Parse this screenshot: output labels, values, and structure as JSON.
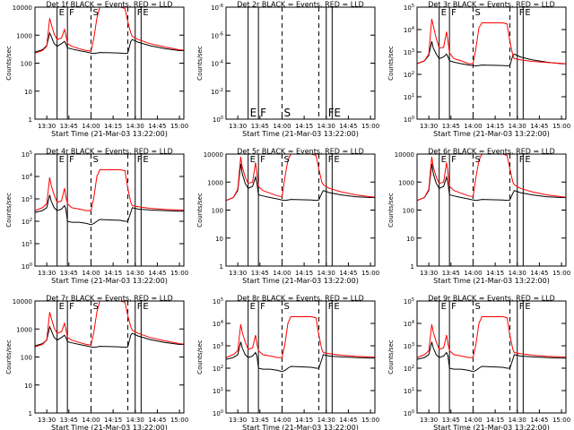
{
  "chart_data": {
    "type": "line",
    "shared": {
      "xlabel": "Start Time (21-Mar-03 13:22:00)",
      "ylabel": "Counts/sec",
      "x_ticks": [
        "13:30",
        "13:45",
        "14:00",
        "14:15",
        "14:30",
        "14:45",
        "15:00"
      ],
      "x_range": [
        "13:22",
        "15:03"
      ],
      "y_scale": "log",
      "event_markers": [
        {
          "label": "E",
          "time": "13:37",
          "style": "solid"
        },
        {
          "label": "F",
          "time": "13:44",
          "style": "solid"
        },
        {
          "label": "S",
          "time": "14:00",
          "style": "dashed"
        },
        {
          "label": "",
          "time": "14:25",
          "style": "dashed"
        },
        {
          "label": "F",
          "time": "14:30",
          "style": "solid"
        },
        {
          "label": "E",
          "time": "14:34",
          "style": "solid"
        }
      ],
      "series_colors": {
        "events": "#000000",
        "lld": "#ff0000"
      },
      "time_points": [
        "13:22",
        "13:27",
        "13:30",
        "13:32",
        "13:33",
        "13:35",
        "13:37",
        "13:40",
        "13:42",
        "13:43",
        "13:44",
        "13:47",
        "13:52",
        "13:57",
        "14:00",
        "14:02",
        "14:04",
        "14:06",
        "14:20",
        "14:23",
        "14:25",
        "14:27",
        "14:28",
        "14:32",
        "14:40",
        "14:50",
        "15:00",
        "15:03"
      ]
    },
    "panels": [
      {
        "title": "Det 1f BLACK = Events, RED = LLD",
        "y_ticks": [
          "1",
          "10",
          "100",
          "1000",
          "10000"
        ],
        "ylim": [
          1,
          10000
        ],
        "events": [
          250,
          300,
          420,
          1200,
          900,
          500,
          400,
          500,
          600,
          500,
          350,
          320,
          280,
          250,
          230,
          220,
          230,
          240,
          230,
          220,
          230,
          600,
          700,
          560,
          420,
          330,
          280,
          280
        ],
        "lld": [
          230,
          280,
          400,
          4000,
          2500,
          1100,
          700,
          800,
          1600,
          1000,
          500,
          400,
          330,
          280,
          270,
          800,
          4000,
          10000,
          10000,
          9000,
          3000,
          1200,
          900,
          700,
          500,
          380,
          300,
          290
        ]
      },
      {
        "title": "Det 2r BLACK = Events, RED = LLD",
        "y_ticks": [
          "10^0",
          "10^-2",
          "10^-4",
          "10^-6",
          "10^-8"
        ],
        "ylim": [
          1,
          1e-08
        ],
        "events": [],
        "lld": []
      },
      {
        "title": "Det 3r BLACK = Events, RED = LLD",
        "y_ticks": [
          "10^0",
          "10^1",
          "10^2",
          "10^3",
          "10^4",
          "10^5"
        ],
        "ylim": [
          1,
          100000
        ],
        "events": [
          300,
          400,
          700,
          3000,
          1500,
          800,
          500,
          600,
          800,
          600,
          400,
          350,
          300,
          260,
          250,
          240,
          250,
          260,
          250,
          240,
          250,
          700,
          800,
          600,
          450,
          350,
          300,
          300
        ],
        "lld": [
          300,
          400,
          800,
          30000,
          15000,
          4000,
          1500,
          1600,
          8000,
          3000,
          900,
          500,
          400,
          300,
          300,
          1500,
          12000,
          20000,
          20000,
          18000,
          3000,
          700,
          500,
          450,
          380,
          340,
          310,
          300
        ]
      },
      {
        "title": "Det 4r BLACK = Events, RED = LLD",
        "y_ticks": [
          "10^0",
          "10^1",
          "10^2",
          "10^3",
          "10^4",
          "10^5"
        ],
        "ylim": [
          1,
          100000
        ],
        "events": [
          250,
          300,
          400,
          1500,
          800,
          400,
          300,
          350,
          500,
          350,
          100,
          90,
          90,
          80,
          70,
          80,
          100,
          120,
          110,
          100,
          100,
          250,
          400,
          350,
          320,
          300,
          280,
          280
        ],
        "lld": [
          300,
          400,
          600,
          9000,
          4000,
          1500,
          700,
          800,
          3000,
          1200,
          600,
          400,
          350,
          300,
          300,
          1200,
          10000,
          20000,
          20000,
          18000,
          3000,
          700,
          500,
          450,
          380,
          340,
          320,
          310
        ]
      },
      {
        "title": "Det 5r BLACK = Events, RED = LLD",
        "y_ticks": [
          "1",
          "10",
          "100",
          "1000",
          "10000"
        ],
        "ylim": [
          1,
          10000
        ],
        "events": [
          220,
          280,
          500,
          4500,
          2000,
          900,
          600,
          700,
          1500,
          900,
          350,
          320,
          280,
          250,
          230,
          220,
          230,
          240,
          230,
          220,
          230,
          400,
          500,
          420,
          350,
          300,
          280,
          280
        ],
        "lld": [
          220,
          280,
          550,
          8000,
          3500,
          1500,
          900,
          1000,
          5000,
          2000,
          700,
          500,
          400,
          320,
          300,
          1500,
          6000,
          10000,
          10000,
          9000,
          3000,
          1000,
          800,
          600,
          450,
          350,
          300,
          290
        ]
      },
      {
        "title": "Det 6r BLACK = Events, RED = LLD",
        "y_ticks": [
          "1",
          "10",
          "100",
          "1000",
          "10000"
        ],
        "ylim": [
          1,
          10000
        ],
        "events": [
          220,
          280,
          500,
          4500,
          2000,
          900,
          600,
          700,
          1500,
          900,
          350,
          320,
          280,
          250,
          230,
          220,
          230,
          240,
          230,
          220,
          230,
          400,
          500,
          420,
          350,
          300,
          280,
          280
        ],
        "lld": [
          220,
          280,
          550,
          8000,
          3500,
          1500,
          900,
          1000,
          5000,
          2000,
          700,
          500,
          400,
          320,
          300,
          1500,
          6000,
          10000,
          10000,
          9000,
          3000,
          1000,
          800,
          600,
          450,
          350,
          300,
          290
        ]
      },
      {
        "title": "Det 7r BLACK = Events, RED = LLD",
        "y_ticks": [
          "1",
          "10",
          "100",
          "1000",
          "10000"
        ],
        "ylim": [
          1,
          10000
        ],
        "events": [
          250,
          300,
          400,
          1200,
          900,
          500,
          400,
          500,
          600,
          500,
          350,
          320,
          280,
          250,
          230,
          220,
          230,
          240,
          230,
          220,
          230,
          600,
          700,
          560,
          420,
          330,
          280,
          280
        ],
        "lld": [
          230,
          280,
          400,
          4000,
          2500,
          1100,
          700,
          800,
          1600,
          1000,
          500,
          400,
          330,
          280,
          270,
          800,
          4000,
          10000,
          10000,
          9000,
          3000,
          1200,
          900,
          700,
          500,
          380,
          300,
          290
        ]
      },
      {
        "title": "Det 8r BLACK = Events, RED = LLD",
        "y_ticks": [
          "10^0",
          "10^1",
          "10^2",
          "10^3",
          "10^4",
          "10^5"
        ],
        "ylim": [
          1,
          100000
        ],
        "events": [
          250,
          300,
          400,
          1500,
          800,
          400,
          300,
          350,
          500,
          350,
          100,
          90,
          90,
          80,
          70,
          80,
          100,
          120,
          110,
          100,
          100,
          250,
          400,
          350,
          320,
          300,
          280,
          280
        ],
        "lld": [
          300,
          400,
          600,
          9000,
          4000,
          1500,
          700,
          800,
          3000,
          1200,
          600,
          400,
          350,
          300,
          300,
          1200,
          10000,
          20000,
          20000,
          18000,
          3000,
          700,
          500,
          450,
          380,
          340,
          320,
          310
        ]
      },
      {
        "title": "Det 9r BLACK = Events, RED = LLD",
        "y_ticks": [
          "10^0",
          "10^1",
          "10^2",
          "10^3",
          "10^4",
          "10^5"
        ],
        "ylim": [
          1,
          100000
        ],
        "events": [
          250,
          300,
          400,
          1500,
          800,
          400,
          300,
          350,
          500,
          350,
          100,
          90,
          90,
          80,
          70,
          80,
          100,
          120,
          110,
          100,
          100,
          250,
          400,
          350,
          320,
          300,
          280,
          280
        ],
        "lld": [
          300,
          400,
          600,
          9000,
          4000,
          1500,
          700,
          800,
          3000,
          1200,
          600,
          400,
          350,
          300,
          300,
          1200,
          10000,
          20000,
          20000,
          18000,
          3000,
          700,
          500,
          450,
          380,
          340,
          320,
          310
        ]
      }
    ]
  }
}
